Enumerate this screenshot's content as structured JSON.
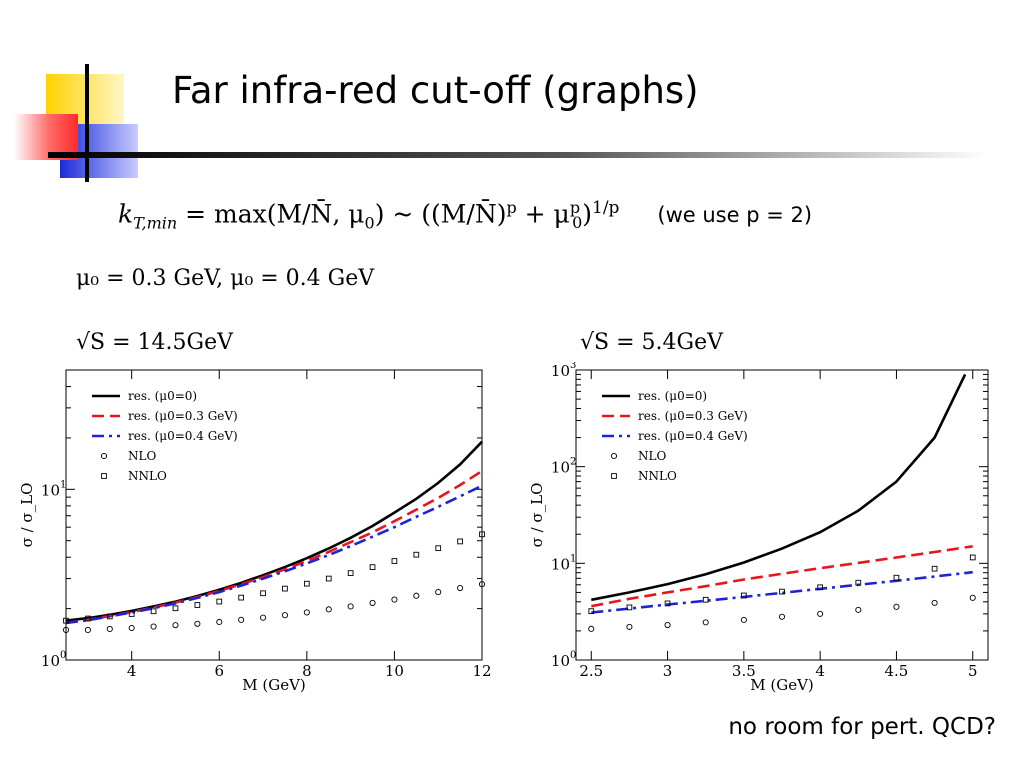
{
  "slide": {
    "title": "Far infra-red cut-off (graphs)",
    "formula": {
      "lhs": "k",
      "lhs_sub": "T,min",
      "eq": "= max(M/N̄, μ",
      "mu_sub": "0",
      "rest": ") ~ ((M/N̄)",
      "p_sup": "p",
      "plus": " + μ",
      "mu0_sup": "p",
      "mu0_sub": "0",
      "close": ")",
      "exp": "1/p",
      "note": "(we use p = 2)"
    },
    "mu_values": "μ₀ = 0.3 GeV, μ₀ = 0.4 GeV",
    "left_energy": "√S = 14.5GeV",
    "right_energy": "√S = 5.4GeV",
    "footer": "no room for pert. QCD?"
  },
  "colors": {
    "black": "#000000",
    "red": "#e8161c",
    "blue": "#1c24d8",
    "accent_yellow": "#ffd200",
    "accent_red": "#ff3333",
    "accent_blue": "#2233dd"
  },
  "chart_data": [
    {
      "type": "line",
      "xlabel": "M (GeV)",
      "ylabel": "σ / σ_LO",
      "yscale": "log",
      "xlim": [
        2.5,
        12
      ],
      "ylim": [
        1,
        50
      ],
      "xticks": [
        4,
        6,
        8,
        10,
        12
      ],
      "yticks": [
        {
          "value": 1,
          "label": "10",
          "sup": "0"
        },
        {
          "value": 10,
          "label": "10",
          "sup": "1"
        }
      ],
      "legend_position": "top-left",
      "series": [
        {
          "name": "res. (μ0=0)",
          "style": "solid",
          "color": "#000000",
          "x": [
            2.5,
            3,
            3.5,
            4,
            4.5,
            5,
            5.5,
            6,
            6.5,
            7,
            7.5,
            8,
            8.5,
            9,
            9.5,
            10,
            10.5,
            11,
            11.5,
            12
          ],
          "values": [
            1.7,
            1.76,
            1.84,
            1.94,
            2.06,
            2.2,
            2.37,
            2.58,
            2.83,
            3.14,
            3.5,
            3.95,
            4.5,
            5.2,
            6.1,
            7.3,
            8.8,
            10.9,
            14.0,
            19.0
          ]
        },
        {
          "name": "res. (μ0=0.3 GeV)",
          "style": "dashed",
          "color": "#e8161c",
          "x": [
            2.5,
            3,
            3.5,
            4,
            4.5,
            5,
            5.5,
            6,
            6.5,
            7,
            7.5,
            8,
            8.5,
            9,
            9.5,
            10,
            10.5,
            11,
            11.5,
            12
          ],
          "values": [
            1.65,
            1.72,
            1.81,
            1.91,
            2.03,
            2.17,
            2.34,
            2.54,
            2.78,
            3.06,
            3.4,
            3.8,
            4.3,
            4.9,
            5.6,
            6.5,
            7.6,
            8.9,
            10.6,
            12.8
          ]
        },
        {
          "name": "res. (μ0=0.4 GeV)",
          "style": "dashdot",
          "color": "#1c24d8",
          "x": [
            2.5,
            3,
            3.5,
            4,
            4.5,
            5,
            5.5,
            6,
            6.5,
            7,
            7.5,
            8,
            8.5,
            9,
            9.5,
            10,
            10.5,
            11,
            11.5,
            12
          ],
          "values": [
            1.65,
            1.71,
            1.8,
            1.9,
            2.01,
            2.15,
            2.31,
            2.5,
            2.73,
            3.0,
            3.31,
            3.68,
            4.12,
            4.65,
            5.28,
            6.0,
            6.9,
            7.9,
            9.1,
            10.5
          ]
        },
        {
          "name": "NLO",
          "style": "circle",
          "color": "#000000",
          "x": [
            2.5,
            3,
            3.5,
            4,
            4.5,
            5,
            5.5,
            6,
            6.5,
            7,
            7.5,
            8,
            8.5,
            9,
            9.5,
            10,
            10.5,
            11,
            11.5,
            12
          ],
          "values": [
            1.5,
            1.5,
            1.52,
            1.54,
            1.57,
            1.6,
            1.63,
            1.67,
            1.72,
            1.77,
            1.83,
            1.9,
            1.98,
            2.06,
            2.16,
            2.26,
            2.38,
            2.5,
            2.64,
            2.78
          ]
        },
        {
          "name": "NNLO",
          "style": "square",
          "color": "#000000",
          "x": [
            2.5,
            3,
            3.5,
            4,
            4.5,
            5,
            5.5,
            6,
            6.5,
            7,
            7.5,
            8,
            8.5,
            9,
            9.5,
            10,
            10.5,
            11,
            11.5,
            12
          ],
          "values": [
            1.7,
            1.75,
            1.8,
            1.86,
            1.93,
            2.01,
            2.1,
            2.2,
            2.32,
            2.46,
            2.62,
            2.8,
            3.0,
            3.23,
            3.5,
            3.8,
            4.14,
            4.52,
            4.95,
            5.45
          ]
        }
      ]
    },
    {
      "type": "line",
      "xlabel": "M (GeV)",
      "ylabel": "σ / σ_LO",
      "yscale": "log",
      "xlim": [
        2.4,
        5.1
      ],
      "ylim": [
        1,
        1000
      ],
      "xticks": [
        2.5,
        3,
        3.5,
        4,
        4.5,
        5
      ],
      "yticks": [
        {
          "value": 1,
          "label": "10",
          "sup": "0"
        },
        {
          "value": 10,
          "label": "10",
          "sup": "1"
        },
        {
          "value": 100,
          "label": "10",
          "sup": "2"
        },
        {
          "value": 1000,
          "label": "10",
          "sup": "3"
        }
      ],
      "legend_position": "top-left",
      "series": [
        {
          "name": "res. (μ0=0)",
          "style": "solid",
          "color": "#000000",
          "x": [
            2.5,
            2.75,
            3,
            3.25,
            3.5,
            3.75,
            4,
            4.25,
            4.5,
            4.75,
            4.95
          ],
          "values": [
            4.2,
            5.0,
            6.1,
            7.7,
            10.2,
            14.2,
            21.0,
            35.0,
            70.0,
            200.0,
            900.0
          ]
        },
        {
          "name": "res. (μ0=0.3 GeV)",
          "style": "dashed",
          "color": "#e8161c",
          "x": [
            2.5,
            2.75,
            3,
            3.25,
            3.5,
            3.75,
            4,
            4.25,
            4.5,
            4.75,
            5
          ],
          "values": [
            3.6,
            4.3,
            5.0,
            5.8,
            6.8,
            7.8,
            8.9,
            10.1,
            11.5,
            13.1,
            15.0
          ]
        },
        {
          "name": "res. (μ0=0.4 GeV)",
          "style": "dashdot",
          "color": "#1c24d8",
          "x": [
            2.5,
            2.75,
            3,
            3.25,
            3.5,
            3.75,
            4,
            4.25,
            4.5,
            4.75,
            5
          ],
          "values": [
            3.1,
            3.4,
            3.75,
            4.1,
            4.5,
            4.95,
            5.45,
            6.0,
            6.6,
            7.3,
            8.1
          ]
        },
        {
          "name": "NLO",
          "style": "circle",
          "color": "#000000",
          "x": [
            2.5,
            2.75,
            3,
            3.25,
            3.5,
            3.75,
            4,
            4.25,
            4.5,
            4.75,
            5
          ],
          "values": [
            2.1,
            2.2,
            2.3,
            2.45,
            2.6,
            2.8,
            3.0,
            3.3,
            3.55,
            3.9,
            4.4
          ]
        },
        {
          "name": "NNLO",
          "style": "square",
          "color": "#000000",
          "x": [
            2.5,
            2.75,
            3,
            3.25,
            3.5,
            3.75,
            4,
            4.25,
            4.5,
            4.75,
            5
          ],
          "values": [
            3.2,
            3.5,
            3.85,
            4.2,
            4.65,
            5.1,
            5.65,
            6.3,
            7.1,
            8.8,
            11.5
          ]
        }
      ]
    }
  ]
}
